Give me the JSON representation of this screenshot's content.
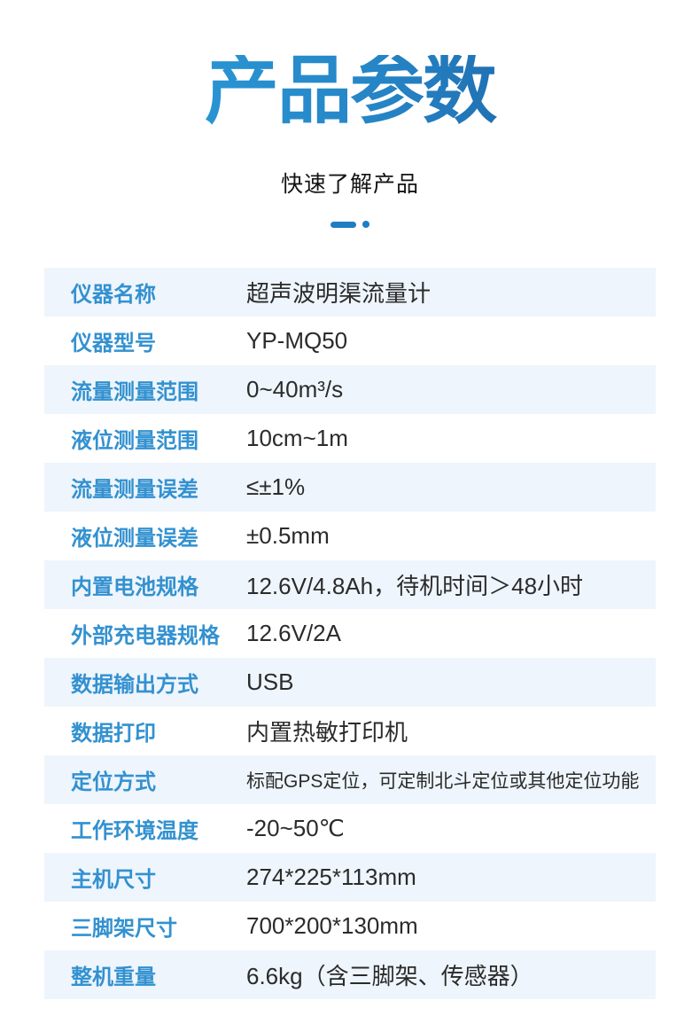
{
  "page": {
    "title": "产品参数",
    "subtitle": "快速了解产品"
  },
  "colors": {
    "title_gradient_start": "#2fa7e2",
    "title_gradient_end": "#175094",
    "divider_blue": "#1f7dc2",
    "label_blue": "#3391d0",
    "row_stripe_blue": "#eef5fc",
    "value_text": "#2b2b2b"
  },
  "spec_table": {
    "rows": [
      {
        "label": "仪器名称",
        "value": "超声波明渠流量计"
      },
      {
        "label": "仪器型号",
        "value": "YP-MQ50"
      },
      {
        "label": "流量测量范围",
        "value": "0~40m³/s"
      },
      {
        "label": "液位测量范围",
        "value": "10cm~1m"
      },
      {
        "label": "流量测量误差",
        "value": "≤±1%"
      },
      {
        "label": "液位测量误差",
        "value": "±0.5mm"
      },
      {
        "label": "内置电池规格",
        "value": "12.6V/4.8Ah，待机时间＞48小时"
      },
      {
        "label": "外部充电器规格",
        "value": "12.6V/2A"
      },
      {
        "label": "数据输出方式",
        "value": "USB"
      },
      {
        "label": "数据打印",
        "value": "内置热敏打印机"
      },
      {
        "label": "定位方式",
        "value": "标配GPS定位，可定制北斗定位或其他定位功能"
      },
      {
        "label": "工作环境温度",
        "value": "-20~50℃"
      },
      {
        "label": "主机尺寸",
        "value": "274*225*113mm"
      },
      {
        "label": "三脚架尺寸",
        "value": "700*200*130mm"
      },
      {
        "label": "整机重量",
        "value": "6.6kg（含三脚架、传感器）"
      }
    ]
  }
}
